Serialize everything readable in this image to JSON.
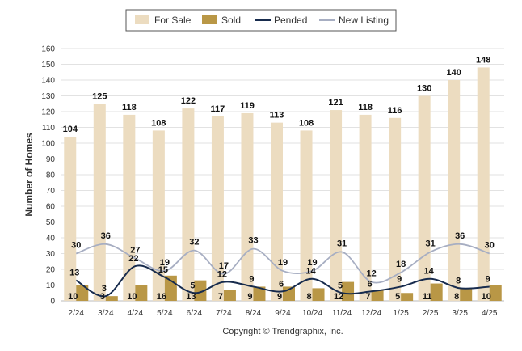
{
  "chart_data": {
    "type": "bar",
    "ylabel": "Number of Homes",
    "ylim": [
      0,
      160
    ],
    "yticks": [
      0,
      10,
      20,
      30,
      40,
      50,
      60,
      70,
      80,
      90,
      100,
      110,
      120,
      130,
      140,
      150,
      160
    ],
    "grid": true,
    "legend_position": "top-center",
    "categories": [
      "2/24",
      "3/24",
      "4/24",
      "5/24",
      "6/24",
      "7/24",
      "8/24",
      "9/24",
      "10/24",
      "11/24",
      "12/24",
      "1/25",
      "2/25",
      "3/25",
      "4/25"
    ],
    "series": [
      {
        "name": "For Sale",
        "kind": "bar",
        "color": "#ecdcc0",
        "values": [
          104,
          125,
          118,
          108,
          122,
          117,
          119,
          113,
          108,
          121,
          118,
          116,
          130,
          140,
          148
        ]
      },
      {
        "name": "Sold",
        "kind": "bar",
        "color": "#b99746",
        "values": [
          10,
          3,
          10,
          16,
          13,
          7,
          9,
          9,
          8,
          12,
          7,
          5,
          11,
          8,
          10
        ]
      },
      {
        "name": "Pended",
        "kind": "line",
        "color": "#172b4d",
        "values": [
          13,
          3,
          22,
          15,
          5,
          12,
          9,
          6,
          14,
          5,
          6,
          9,
          14,
          8,
          9
        ]
      },
      {
        "name": "New Listing",
        "kind": "line",
        "color": "#a7aec2",
        "values": [
          30,
          36,
          27,
          19,
          32,
          17,
          33,
          19,
          19,
          31,
          12,
          18,
          31,
          36,
          30
        ]
      }
    ],
    "footer": "Copyright © Trendgraphix, Inc."
  }
}
